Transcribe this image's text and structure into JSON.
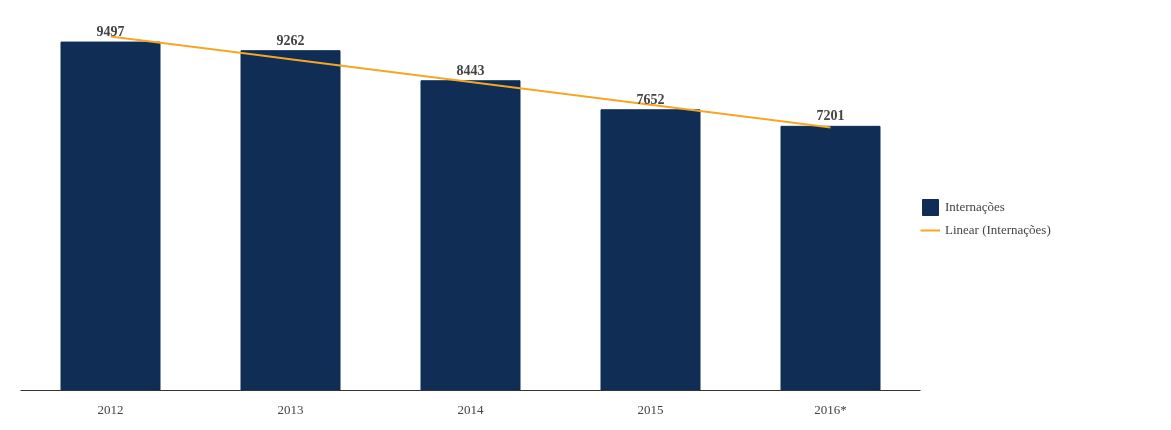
{
  "chart_data": {
    "type": "bar",
    "categories": [
      "2012",
      "2013",
      "2014",
      "2015",
      "2016*"
    ],
    "series": [
      {
        "name": "Internações",
        "color": "#0f2d55",
        "values": [
          9497,
          9262,
          8443,
          7652,
          7201
        ],
        "value_labels": [
          "9497",
          "9262",
          "8443",
          "7652",
          "7201"
        ]
      },
      {
        "name": "Linear (Internações)",
        "type": "line",
        "color": "#f5a623",
        "values": [
          9651,
          9031,
          8411,
          7791,
          7171
        ]
      }
    ],
    "tick_labels": "x",
    "grid": false,
    "legend": "right",
    "marker": "none"
  }
}
